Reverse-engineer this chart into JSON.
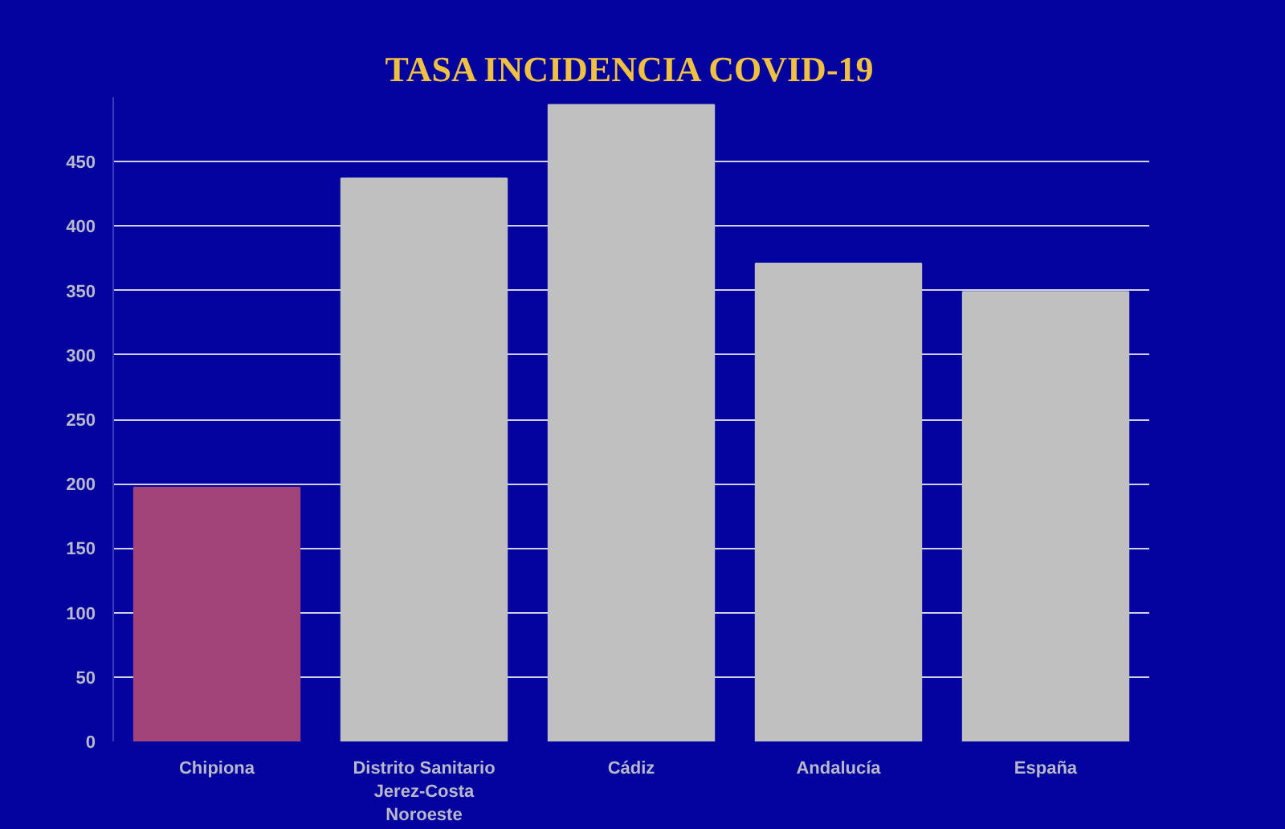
{
  "chart_data": {
    "type": "bar",
    "title": "TASA INCIDENCIA COVID-19",
    "categories": [
      "Chipiona",
      "Distrito Sanitario Jerez-Costa Noroeste",
      "Cádiz",
      "Andalucía",
      "España"
    ],
    "values": [
      197,
      437,
      494,
      371,
      349
    ],
    "colors": [
      "#a0447a",
      "#c0c0c0",
      "#c0c0c0",
      "#c0c0c0",
      "#c0c0c0"
    ],
    "ylim": [
      0,
      500
    ],
    "yticks": [
      0,
      50,
      100,
      150,
      200,
      250,
      300,
      350,
      400,
      450
    ],
    "grid": "y"
  }
}
